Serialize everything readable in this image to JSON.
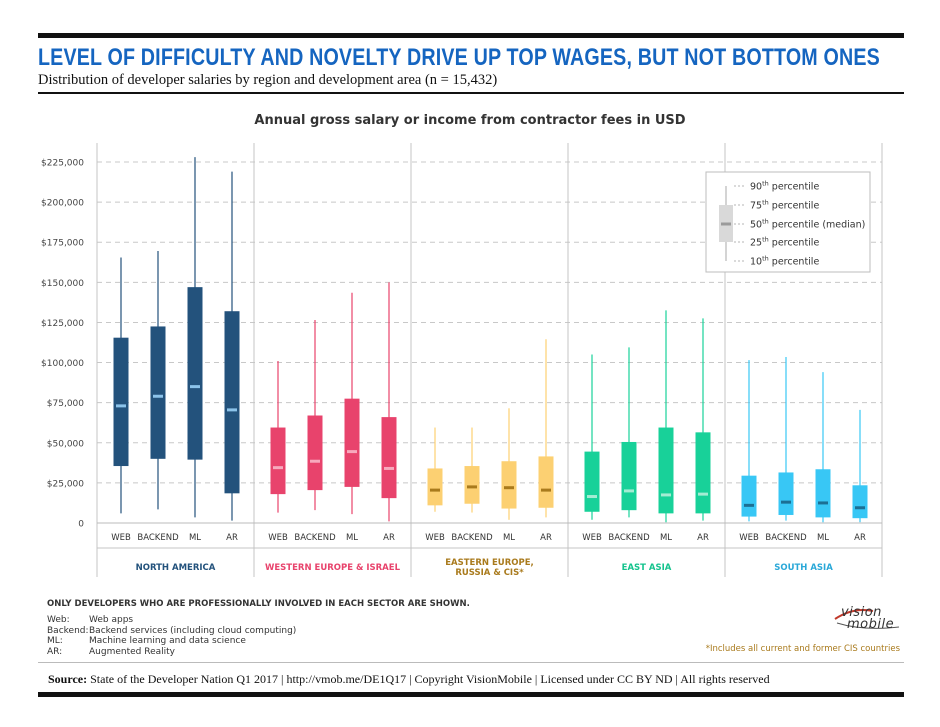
{
  "header": {
    "title": "LEVEL OF DIFFICULTY AND NOVELTY DRIVE UP TOP WAGES, BUT NOT BOTTOM ONES",
    "subtitle": "Distribution of developer salaries by region and development area (n = 15,432)"
  },
  "chart_data": {
    "type": "box",
    "title": "Annual gross salary or income from contractor fees in USD",
    "ylim": [
      0,
      225000
    ],
    "yticks": [
      0,
      25000,
      50000,
      75000,
      100000,
      125000,
      150000,
      175000,
      200000,
      225000
    ],
    "ytick_labels": [
      "0",
      "$25,000",
      "$50,000",
      "$75,000",
      "$100,000",
      "$125,000",
      "$150,000",
      "$175,000",
      "$200,000",
      "$225,000"
    ],
    "grid": "horizontal dashed",
    "categories": [
      "WEB",
      "BACKEND",
      "ML",
      "AR"
    ],
    "groups": [
      {
        "name": "NORTH AMERICA",
        "color": "#23527c",
        "median_color": "#8cc3ea",
        "boxes": [
          {
            "p10": 6000,
            "p25": 35500,
            "p50": 73000,
            "p75": 115500,
            "p90": 165500
          },
          {
            "p10": 8500,
            "p25": 40000,
            "p50": 79000,
            "p75": 122500,
            "p90": 169500
          },
          {
            "p10": 3500,
            "p25": 39500,
            "p50": 85000,
            "p75": 147000,
            "p90": 228000
          },
          {
            "p10": 1500,
            "p25": 18500,
            "p50": 70500,
            "p75": 132000,
            "p90": 219000
          }
        ]
      },
      {
        "name": "WESTERN EUROPE & ISRAEL",
        "color": "#e8436c",
        "median_color": "#f7a9bd",
        "boxes": [
          {
            "p10": 6500,
            "p25": 18000,
            "p50": 34500,
            "p75": 59500,
            "p90": 101000
          },
          {
            "p10": 8000,
            "p25": 20500,
            "p50": 38500,
            "p75": 67000,
            "p90": 126500
          },
          {
            "p10": 5500,
            "p25": 22500,
            "p50": 44500,
            "p75": 77500,
            "p90": 143500
          },
          {
            "p10": 1000,
            "p25": 15500,
            "p50": 34000,
            "p75": 66000,
            "p90": 150000
          }
        ]
      },
      {
        "name": "EASTERN EUROPE, RUSSIA & CIS*",
        "color": "#fcd072",
        "median_color": "#a97a1c",
        "boxes": [
          {
            "p10": 7000,
            "p25": 11000,
            "p50": 20500,
            "p75": 34000,
            "p90": 59500
          },
          {
            "p10": 6500,
            "p25": 12000,
            "p50": 22500,
            "p75": 35500,
            "p90": 59500
          },
          {
            "p10": 2000,
            "p25": 9000,
            "p50": 22000,
            "p75": 38500,
            "p90": 71500
          },
          {
            "p10": 3500,
            "p25": 9500,
            "p50": 20500,
            "p75": 41500,
            "p90": 114500
          }
        ]
      },
      {
        "name": "EAST ASIA",
        "color": "#18d199",
        "median_color": "#a4ecd3",
        "boxes": [
          {
            "p10": 2000,
            "p25": 7000,
            "p50": 16500,
            "p75": 44500,
            "p90": 105000
          },
          {
            "p10": 3500,
            "p25": 8000,
            "p50": 20000,
            "p75": 50500,
            "p90": 109500
          },
          {
            "p10": 500,
            "p25": 6000,
            "p50": 17500,
            "p75": 59500,
            "p90": 132500
          },
          {
            "p10": 1500,
            "p25": 6000,
            "p50": 18000,
            "p75": 56500,
            "p90": 127500
          }
        ]
      },
      {
        "name": "SOUTH ASIA",
        "color": "#38c7f5",
        "median_color": "#1c6f94",
        "boxes": [
          {
            "p10": 1000,
            "p25": 4000,
            "p50": 11000,
            "p75": 29500,
            "p90": 101500
          },
          {
            "p10": 1500,
            "p25": 5000,
            "p50": 13000,
            "p75": 31500,
            "p90": 103500
          },
          {
            "p10": 500,
            "p25": 3500,
            "p50": 12500,
            "p75": 33500,
            "p90": 94000
          },
          {
            "p10": 500,
            "p25": 3000,
            "p50": 9500,
            "p75": 23500,
            "p90": 70500
          }
        ]
      }
    ],
    "legend": {
      "placement": "top-right",
      "items": [
        {
          "sup": "90",
          "suffix": "th",
          "label": "percentile"
        },
        {
          "sup": "75",
          "suffix": "th",
          "label": "percentile"
        },
        {
          "sup": "50",
          "suffix": "th",
          "label": "percentile (median)"
        },
        {
          "sup": "25",
          "suffix": "th",
          "label": "percentile"
        },
        {
          "sup": "10",
          "suffix": "th",
          "label": "percentile"
        }
      ]
    }
  },
  "notes": {
    "scope": "ONLY DEVELOPERS WHO ARE PROFESSIONALLY INVOLVED IN EACH SECTOR ARE SHOWN.",
    "definitions": [
      {
        "term": "Web:",
        "desc": "Web apps"
      },
      {
        "term": "Backend:",
        "desc": "Backend services (including cloud computing)"
      },
      {
        "term": "ML:",
        "desc": "Machine learning and data science"
      },
      {
        "term": "AR:",
        "desc": "Augmented Reality"
      }
    ],
    "cis_footnote": "*Includes all current and former CIS countries"
  },
  "logo": {
    "line1": "vision",
    "line2": "mobile"
  },
  "source": {
    "label": "Source:",
    "text": "State of the Developer Nation Q1 2017   |   http://vmob.me/DE1Q17   |   Copyright VisionMobile   |   Licensed under CC BY ND   |   All rights reserved"
  }
}
